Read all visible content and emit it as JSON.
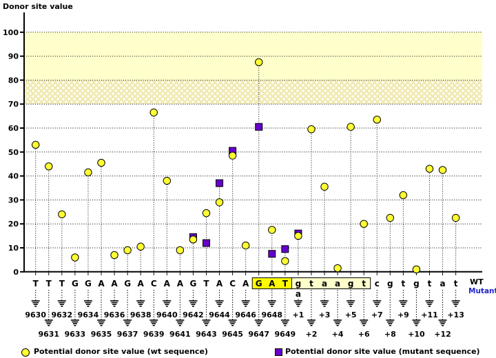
{
  "title": "Donor site value",
  "row_labels": {
    "wt": "WT",
    "mutant": "Mutant"
  },
  "legend": {
    "wt_label": "Potential donor site value (wt sequence)",
    "mutant_label": "Potential donor site value (mutant sequence)"
  },
  "colors": {
    "wt_marker": "#FFFF33",
    "mutant_marker": "#6600CC",
    "score_band": "#FFFFCC",
    "hatch_band_line": "#F1E9AE",
    "exon_highlight": "#FFFF00",
    "intron_highlight": "#FFFFCC",
    "mutant_text": "#2222CC",
    "axis": "#000000"
  },
  "chart_data": {
    "type": "scatter",
    "title": "Donor site value",
    "ylabel": "Donor site value",
    "ylim": [
      0,
      100
    ],
    "yticks": [
      0,
      10,
      20,
      30,
      40,
      50,
      60,
      70,
      80,
      90,
      100
    ],
    "grid": "horizontal-dotted",
    "legend_position": "bottom",
    "bands": [
      {
        "from": 80,
        "to": 100,
        "style": "solid"
      },
      {
        "from": 70,
        "to": 80,
        "style": "hatch"
      }
    ],
    "series": [
      {
        "name": "Potential donor site value (wt sequence)",
        "marker": "circle"
      },
      {
        "name": "Potential donor site value (mutant sequence)",
        "marker": "square"
      }
    ],
    "mutation": {
      "position": "+1",
      "wt_base": "g",
      "mutant_base": "a"
    },
    "donor_site_box": {
      "exon_positions": [
        "9647",
        "9648",
        "9649"
      ],
      "intron_positions": [
        "+1",
        "+2",
        "+3",
        "+4",
        "+5",
        "+6"
      ]
    },
    "positions": [
      {
        "label": "9630",
        "base": "T",
        "wt": 53
      },
      {
        "label": "9631",
        "base": "T",
        "wt": 44
      },
      {
        "label": "9632",
        "base": "T",
        "wt": 24
      },
      {
        "label": "9633",
        "base": "G",
        "wt": 6
      },
      {
        "label": "9634",
        "base": "G",
        "wt": 41.5
      },
      {
        "label": "9635",
        "base": "A",
        "wt": 45.5
      },
      {
        "label": "9636",
        "base": "A",
        "wt": 7
      },
      {
        "label": "9637",
        "base": "G",
        "wt": 9
      },
      {
        "label": "9638",
        "base": "A",
        "wt": 10.5
      },
      {
        "label": "9639",
        "base": "C",
        "wt": 66.5
      },
      {
        "label": "9640",
        "base": "A",
        "wt": 38
      },
      {
        "label": "9641",
        "base": "A",
        "wt": 9
      },
      {
        "label": "9642",
        "base": "G",
        "wt": 13.5,
        "mut": 14.5
      },
      {
        "label": "9643",
        "base": "T",
        "wt": 24.5,
        "mut": 12
      },
      {
        "label": "9644",
        "base": "A",
        "wt": 29,
        "mut": 37
      },
      {
        "label": "9645",
        "base": "C",
        "wt": 48.5,
        "mut": 50.5
      },
      {
        "label": "9646",
        "base": "A",
        "wt": 11
      },
      {
        "label": "9647",
        "base": "G",
        "wt": 87.5,
        "mut": 60.5,
        "box": "exon"
      },
      {
        "label": "9648",
        "base": "A",
        "wt": 17.5,
        "mut": 7.5,
        "box": "exon"
      },
      {
        "label": "9649",
        "base": "T",
        "wt": 4.5,
        "mut": 9.5,
        "box": "exon"
      },
      {
        "label": "+1",
        "base": "g",
        "mutant_base": "a",
        "wt": 15,
        "mut": 16,
        "box": "intron"
      },
      {
        "label": "+2",
        "base": "t",
        "wt": 59.5,
        "box": "intron"
      },
      {
        "label": "+3",
        "base": "a",
        "wt": 35.5,
        "box": "intron"
      },
      {
        "label": "+4",
        "base": "a",
        "wt": 1.5,
        "box": "intron"
      },
      {
        "label": "+5",
        "base": "g",
        "wt": 60.5,
        "box": "intron"
      },
      {
        "label": "+6",
        "base": "t",
        "wt": 20,
        "box": "intron"
      },
      {
        "label": "+7",
        "base": "c",
        "wt": 63.5
      },
      {
        "label": "+8",
        "base": "g",
        "wt": 22.5
      },
      {
        "label": "+9",
        "base": "t",
        "wt": 32
      },
      {
        "label": "+10",
        "base": "g",
        "wt": 1
      },
      {
        "label": "+11",
        "base": "t",
        "wt": 43
      },
      {
        "label": "+12",
        "base": "a",
        "wt": 42.5
      },
      {
        "label": "+13",
        "base": "t",
        "wt": 22.5
      }
    ]
  }
}
